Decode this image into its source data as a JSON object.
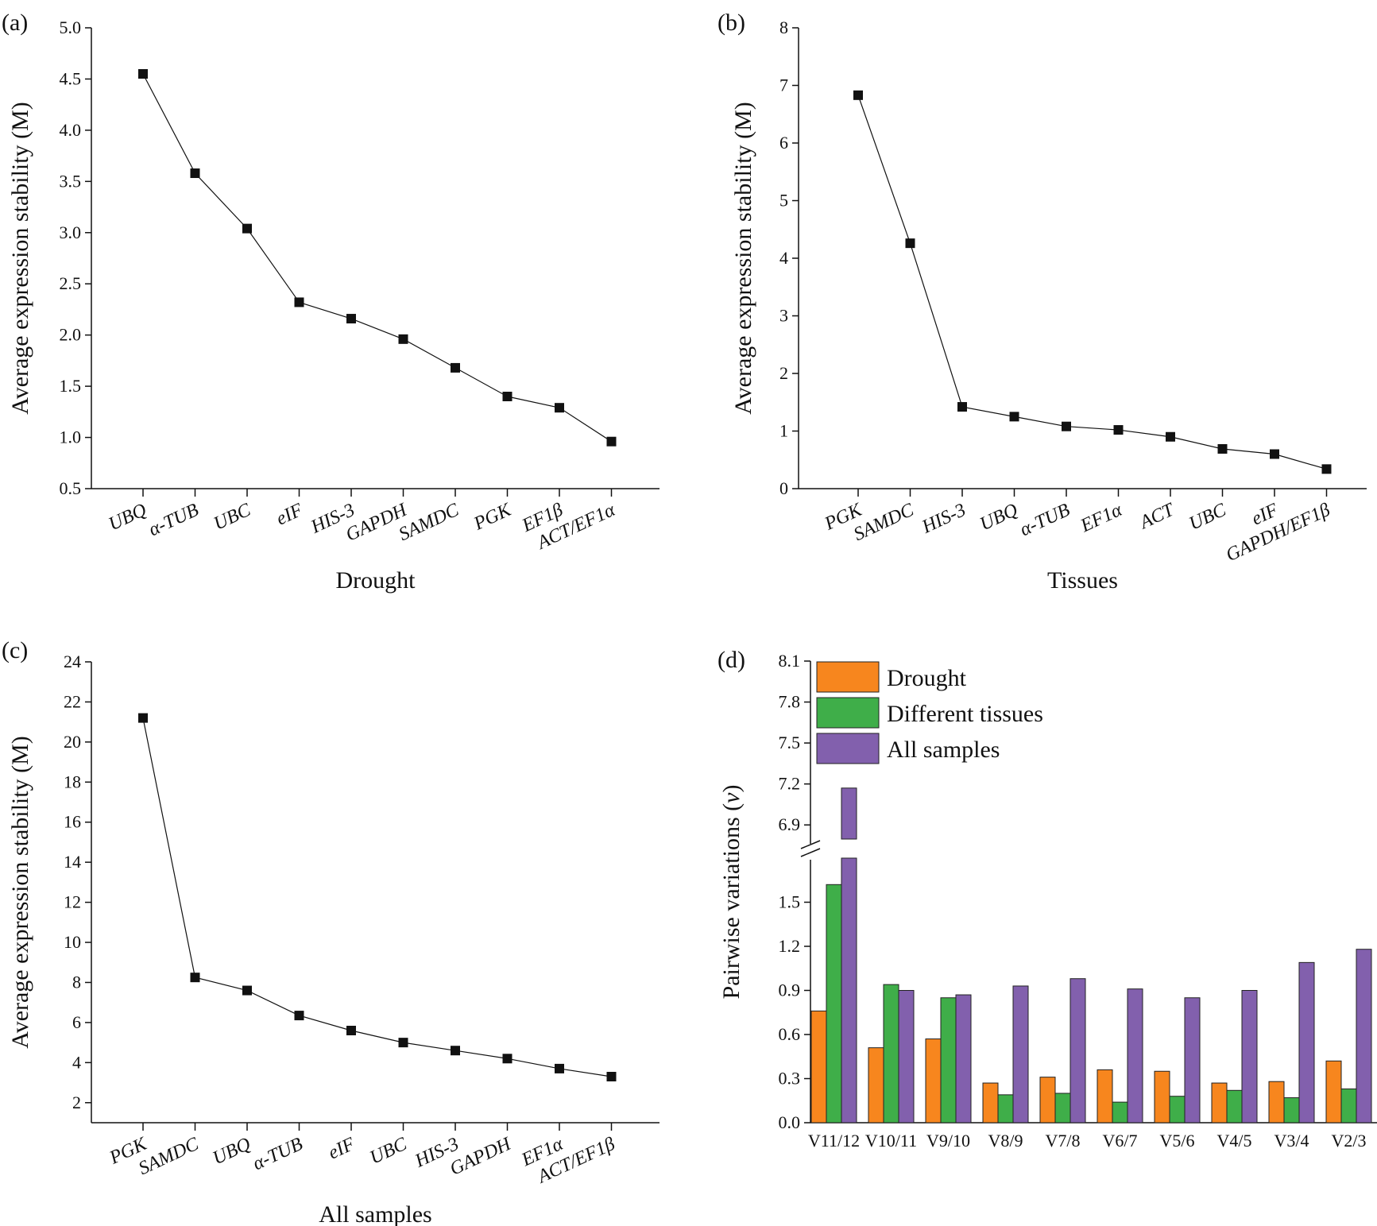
{
  "chart_data": [
    {
      "panel": "(a)",
      "type": "line",
      "xlabel": "Drought",
      "ylabel": "Average expression stability (M)",
      "ylim": [
        0.5,
        5.0
      ],
      "yticks": [
        0.5,
        1.0,
        1.5,
        2.0,
        2.5,
        3.0,
        3.5,
        4.0,
        4.5,
        5.0
      ],
      "ytick_labels": [
        "0.5",
        "1.0",
        "1.5",
        "2.0",
        "2.5",
        "3.0",
        "3.5",
        "4.0",
        "4.5",
        "5.0"
      ],
      "categories": [
        "UBQ",
        "α-TUB",
        "UBC",
        "eIF",
        "HIS-3",
        "GAPDH",
        "SAMDC",
        "PGK",
        "EF1β",
        "ACT/EF1α"
      ],
      "values": [
        4.55,
        3.58,
        3.04,
        2.32,
        2.16,
        1.96,
        1.68,
        1.4,
        1.29,
        0.96
      ]
    },
    {
      "panel": "(b)",
      "type": "line",
      "xlabel": "Tissues",
      "ylabel": "Average expression stability (M)",
      "ylim": [
        0,
        8
      ],
      "yticks": [
        0,
        1,
        2,
        3,
        4,
        5,
        6,
        7,
        8
      ],
      "ytick_labels": [
        "0",
        "1",
        "2",
        "3",
        "4",
        "5",
        "6",
        "7",
        "8"
      ],
      "categories": [
        "PGK",
        "SAMDC",
        "HIS-3",
        "UBQ",
        "α-TUB",
        "EF1α",
        "ACT",
        "UBC",
        "eIF",
        "GAPDH/EF1β"
      ],
      "values": [
        6.83,
        4.26,
        1.42,
        1.25,
        1.08,
        1.02,
        0.9,
        0.69,
        0.6,
        0.34
      ]
    },
    {
      "panel": "(c)",
      "type": "line",
      "xlabel": "All samples",
      "ylabel": "Average expression stability (M)",
      "ylim": [
        1,
        24
      ],
      "yticks": [
        2,
        4,
        6,
        8,
        10,
        12,
        14,
        16,
        18,
        20,
        22,
        24
      ],
      "ytick_labels": [
        "2",
        "4",
        "6",
        "8",
        "10",
        "12",
        "14",
        "16",
        "18",
        "20",
        "22",
        "24"
      ],
      "categories": [
        "PGK",
        "SAMDC",
        "UBQ",
        "α-TUB",
        "eIF",
        "UBC",
        "HIS-3",
        "GAPDH",
        "EF1α",
        "ACT/EF1β"
      ],
      "values": [
        21.2,
        8.25,
        7.6,
        6.35,
        5.6,
        5.0,
        4.6,
        4.2,
        3.7,
        3.3
      ]
    },
    {
      "panel": "(d)",
      "type": "bar",
      "ylabel_prefix": "Pairwise variations (",
      "ylabel_var": "v",
      "ylabel_suffix": ")",
      "ylim_lower": [
        0,
        1.8
      ],
      "ylim_upper": [
        6.75,
        8.1
      ],
      "yticks_lower": [
        0.0,
        0.3,
        0.6,
        0.9,
        1.2,
        1.5
      ],
      "ytick_labels_lower": [
        "0.0",
        "0.3",
        "0.6",
        "0.9",
        "1.2",
        "1.5"
      ],
      "yticks_upper": [
        6.9,
        7.2,
        7.5,
        7.8,
        8.1
      ],
      "ytick_labels_upper": [
        "6.9",
        "7.2",
        "7.5",
        "7.8",
        "8.1"
      ],
      "categories": [
        "V11/12",
        "V10/11",
        "V9/10",
        "V8/9",
        "V7/8",
        "V6/7",
        "V5/6",
        "V4/5",
        "V3/4",
        "V2/3"
      ],
      "series": [
        {
          "name": "Drought",
          "color": "#f7861e",
          "values": [
            0.76,
            0.51,
            0.57,
            0.27,
            0.31,
            0.36,
            0.35,
            0.27,
            0.28,
            0.42
          ]
        },
        {
          "name": "Different tissues",
          "color": "#3fae49",
          "values": [
            1.62,
            0.94,
            0.85,
            0.19,
            0.2,
            0.14,
            0.18,
            0.22,
            0.17,
            0.23
          ]
        },
        {
          "name": "All samples",
          "color": "#8260ad",
          "values": [
            7.17,
            0.9,
            0.87,
            0.93,
            0.98,
            0.91,
            0.85,
            0.9,
            1.09,
            1.18
          ]
        }
      ]
    }
  ]
}
